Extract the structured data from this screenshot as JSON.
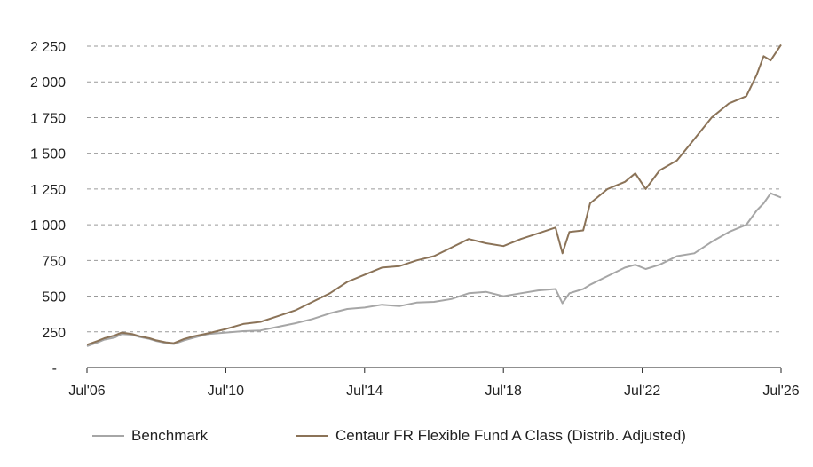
{
  "chart_data": {
    "type": "line",
    "title": "",
    "xlabel": "",
    "ylabel": "",
    "x_ticks": [
      "Jul'06",
      "Jul'10",
      "Jul'14",
      "Jul'18",
      "Jul'22",
      "Jul'26"
    ],
    "y_ticks": [
      "-",
      "250",
      "500",
      "750",
      "1 000",
      "1 250",
      "1 500",
      "1 750",
      "2 000",
      "2 250"
    ],
    "ylim": [
      0,
      2250
    ],
    "xlim": [
      2006.5,
      2026.5
    ],
    "grid": "horizontal dashed",
    "legend_position": "bottom",
    "series": [
      {
        "name": "Benchmark",
        "color": "#a6a6a6",
        "x": [
          2006.5,
          2006.8,
          2007.0,
          2007.3,
          2007.5,
          2007.8,
          2008.0,
          2008.3,
          2008.5,
          2008.8,
          2009.0,
          2009.3,
          2009.6,
          2010.0,
          2010.5,
          2011.0,
          2011.5,
          2012.0,
          2012.5,
          2013.0,
          2013.5,
          2014.0,
          2014.5,
          2015.0,
          2015.5,
          2016.0,
          2016.5,
          2017.0,
          2017.5,
          2018.0,
          2018.5,
          2019.0,
          2019.5,
          2020.0,
          2020.2,
          2020.4,
          2020.8,
          2021.0,
          2021.5,
          2022.0,
          2022.3,
          2022.6,
          2023.0,
          2023.5,
          2024.0,
          2024.5,
          2025.0,
          2025.5,
          2025.8,
          2026.0,
          2026.2,
          2026.5
        ],
        "values": [
          150,
          175,
          195,
          210,
          235,
          230,
          215,
          200,
          185,
          170,
          165,
          190,
          210,
          235,
          245,
          255,
          260,
          285,
          310,
          340,
          380,
          410,
          420,
          440,
          430,
          455,
          460,
          480,
          520,
          530,
          500,
          520,
          540,
          550,
          450,
          520,
          550,
          580,
          640,
          700,
          720,
          690,
          720,
          780,
          800,
          880,
          950,
          1000,
          1100,
          1150,
          1220,
          1190
        ]
      },
      {
        "name": "Centaur FR Flexible Fund A Class (Distrib. Adjusted)",
        "color": "#8b7358",
        "x": [
          2006.5,
          2006.8,
          2007.0,
          2007.3,
          2007.5,
          2007.8,
          2008.0,
          2008.3,
          2008.5,
          2008.8,
          2009.0,
          2009.3,
          2009.6,
          2010.0,
          2010.5,
          2011.0,
          2011.5,
          2012.0,
          2012.5,
          2013.0,
          2013.5,
          2014.0,
          2014.5,
          2015.0,
          2015.5,
          2016.0,
          2016.5,
          2017.0,
          2017.5,
          2018.0,
          2018.5,
          2019.0,
          2019.5,
          2020.0,
          2020.2,
          2020.4,
          2020.8,
          2021.0,
          2021.5,
          2022.0,
          2022.3,
          2022.6,
          2023.0,
          2023.5,
          2024.0,
          2024.5,
          2025.0,
          2025.5,
          2025.8,
          2026.0,
          2026.2,
          2026.5
        ],
        "values": [
          160,
          185,
          205,
          225,
          245,
          235,
          220,
          205,
          190,
          175,
          170,
          200,
          220,
          240,
          270,
          305,
          320,
          360,
          400,
          460,
          520,
          600,
          650,
          700,
          710,
          750,
          780,
          840,
          900,
          870,
          850,
          900,
          940,
          980,
          800,
          950,
          960,
          1150,
          1250,
          1300,
          1360,
          1250,
          1380,
          1450,
          1600,
          1750,
          1850,
          1900,
          2050,
          2180,
          2150,
          2260
        ]
      }
    ]
  }
}
